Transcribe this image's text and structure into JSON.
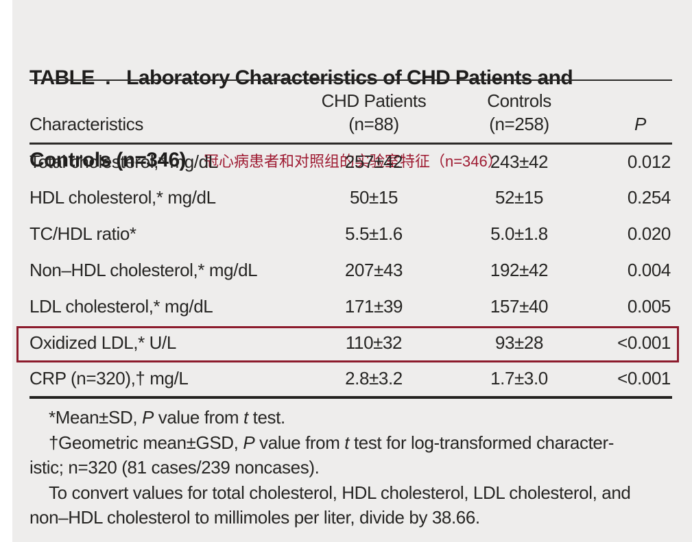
{
  "title": {
    "line1": "TABLE  .   Laboratory Characteristics of CHD Patients and",
    "line2": "Controls (n=346)",
    "annotation_zh": "冠心病患者和对照组的实验室特征（n=346）"
  },
  "colors": {
    "accent_red": "#8c1b2c",
    "annotation_red": "#9e1a31",
    "text": "#222220",
    "background": "#eeedec",
    "rule": "#2b2a28"
  },
  "table": {
    "header": {
      "characteristics": "Characteristics",
      "chd_top": "CHD Patients",
      "chd_bottom": "(n=88)",
      "controls_top": "Controls",
      "controls_bottom": "(n=258)",
      "p": "P"
    },
    "rows": [
      {
        "label": "Total cholesterol,* mg/dL",
        "chd": "257±42",
        "controls": "243±42",
        "p": "0.012"
      },
      {
        "label": "HDL cholesterol,* mg/dL",
        "chd": "50±15",
        "controls": "52±15",
        "p": "0.254"
      },
      {
        "label": "TC/HDL ratio*",
        "chd": "5.5±1.6",
        "controls": "5.0±1.8",
        "p": "0.020"
      },
      {
        "label": "Non–HDL cholesterol,* mg/dL",
        "chd": "207±43",
        "controls": "192±42",
        "p": "0.004"
      },
      {
        "label": "LDL cholesterol,* mg/dL",
        "chd": "171±39",
        "controls": "157±40",
        "p": "0.005"
      },
      {
        "label": "Oxidized LDL,* U/L",
        "chd": "110±32",
        "controls": "93±28",
        "p": "<0.001"
      },
      {
        "label": "CRP (n=320),† mg/L",
        "chd": "2.8±3.2",
        "controls": "1.7±3.0",
        "p": "<0.001"
      }
    ],
    "highlighted_row_label": "Oxidized LDL,* U/L"
  },
  "footnotes": {
    "fn1": {
      "pre": "*Mean±SD, ",
      "p": "P",
      "mid": " value from ",
      "t": "t",
      "post": " test."
    },
    "fn2": {
      "pre": "†Geometric mean±GSD, ",
      "p": "P",
      "mid": " value from ",
      "t": "t",
      "post": " test for log-transformed character-",
      "line2": "istic; n=320 (81 cases/239 noncases)."
    },
    "fn3": {
      "line1": "To convert values for total cholesterol, HDL cholesterol, LDL cholesterol, and",
      "line2": "non–HDL cholesterol to millimoles per liter, divide by 38.66."
    }
  }
}
